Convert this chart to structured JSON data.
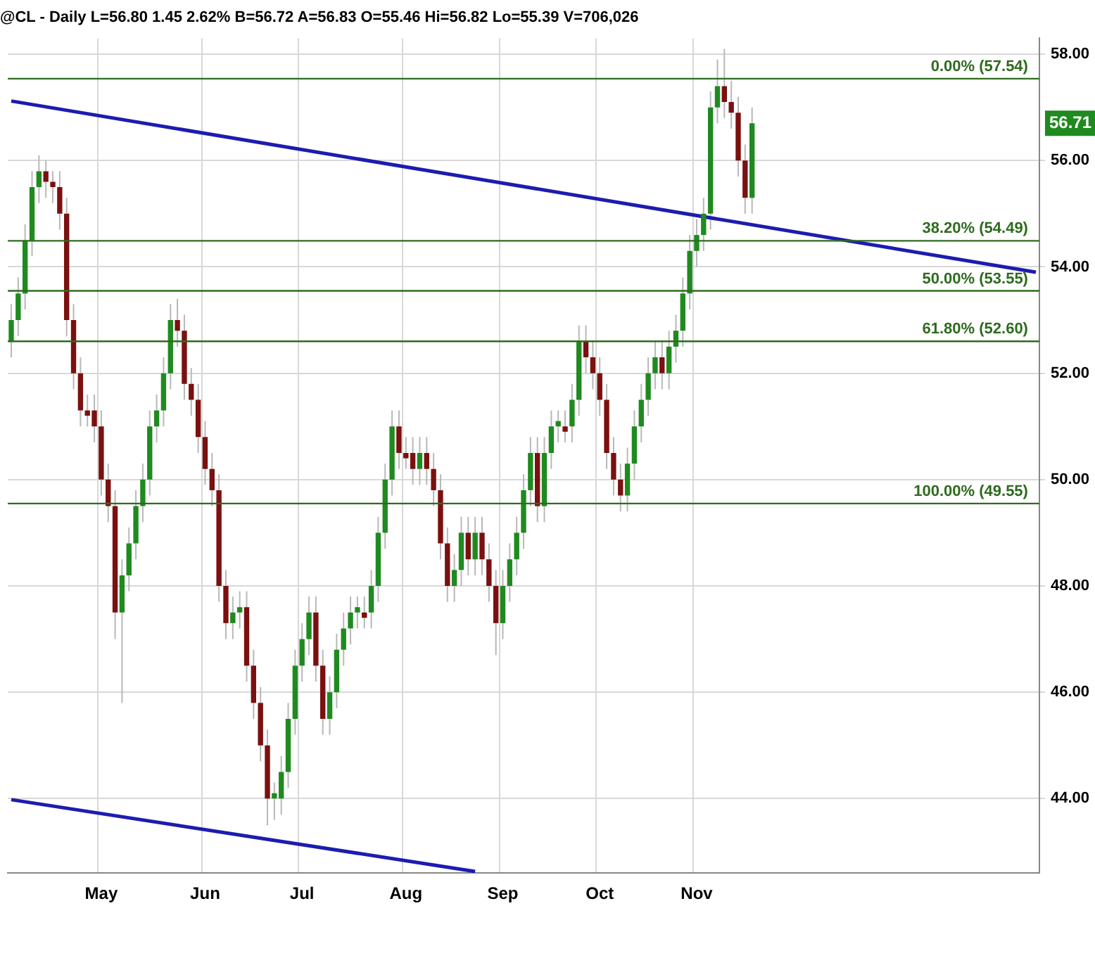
{
  "chart_data": {
    "type": "candlestick",
    "title": "@CL - Daily L=56.80 1.45 2.62% B=56.72 A=56.83 O=55.46 Hi=56.82 Lo=55.39 V=706,026",
    "categories": [
      null,
      null,
      null,
      null,
      null,
      null,
      null,
      null,
      null,
      null,
      null,
      null,
      null,
      "May",
      null,
      null,
      null,
      null,
      null,
      null,
      null,
      null,
      null,
      null,
      null,
      null,
      null,
      null,
      "Jun",
      null,
      null,
      null,
      null,
      null,
      null,
      null,
      null,
      null,
      null,
      null,
      null,
      null,
      "Jul",
      null,
      null,
      null,
      null,
      null,
      null,
      null,
      null,
      null,
      null,
      null,
      null,
      null,
      null,
      "Aug",
      null,
      null,
      null,
      null,
      null,
      null,
      null,
      null,
      null,
      null,
      null,
      null,
      null,
      "Sep",
      null,
      null,
      null,
      null,
      null,
      null,
      null,
      null,
      null,
      null,
      null,
      null,
      null,
      "Oct",
      null,
      null,
      null,
      null,
      null,
      null,
      null,
      null,
      null,
      null,
      null,
      null,
      null,
      "Nov",
      null,
      null,
      null,
      null,
      null,
      null,
      null,
      null,
      null,
      null,
      null,
      null,
      null,
      null,
      null,
      null,
      null,
      null,
      null,
      null,
      null,
      null,
      null,
      null,
      null,
      null,
      null,
      null,
      null,
      null,
      null,
      null,
      null,
      null,
      null,
      null,
      null,
      null,
      null,
      null,
      null,
      null,
      null,
      null,
      null,
      null,
      null,
      null,
      null
    ],
    "ohlc": [
      [
        52.6,
        53.3,
        52.3,
        53.0
      ],
      [
        53.0,
        53.8,
        52.7,
        53.5
      ],
      [
        53.5,
        54.8,
        53.2,
        54.5
      ],
      [
        54.5,
        55.8,
        54.2,
        55.5
      ],
      [
        55.5,
        56.1,
        55.2,
        55.8
      ],
      [
        55.8,
        56.0,
        55.3,
        55.6
      ],
      [
        55.6,
        55.8,
        55.2,
        55.5
      ],
      [
        55.5,
        55.8,
        54.7,
        55.0
      ],
      [
        55.0,
        55.3,
        52.7,
        53.0
      ],
      [
        53.0,
        53.3,
        51.7,
        52.0
      ],
      [
        52.0,
        52.3,
        51.0,
        51.3
      ],
      [
        51.3,
        51.6,
        51.0,
        51.2
      ],
      [
        51.3,
        51.6,
        50.7,
        51.0
      ],
      [
        51.0,
        51.3,
        49.7,
        50.0
      ],
      [
        50.0,
        50.3,
        49.2,
        49.5
      ],
      [
        49.5,
        49.8,
        47.0,
        47.5
      ],
      [
        47.5,
        48.5,
        45.8,
        48.2
      ],
      [
        48.2,
        49.1,
        47.9,
        48.8
      ],
      [
        48.8,
        49.8,
        48.5,
        49.5
      ],
      [
        49.5,
        50.3,
        49.2,
        50.0
      ],
      [
        50.0,
        51.3,
        49.7,
        51.0
      ],
      [
        51.0,
        51.6,
        50.7,
        51.3
      ],
      [
        51.3,
        52.3,
        51.0,
        52.0
      ],
      [
        52.0,
        53.3,
        51.7,
        53.0
      ],
      [
        53.0,
        53.4,
        52.5,
        52.8
      ],
      [
        52.8,
        53.1,
        51.5,
        51.8
      ],
      [
        51.8,
        52.1,
        51.2,
        51.5
      ],
      [
        51.5,
        51.8,
        50.5,
        50.8
      ],
      [
        50.8,
        51.1,
        49.9,
        50.2
      ],
      [
        50.2,
        50.5,
        49.5,
        49.8
      ],
      [
        49.8,
        50.1,
        47.7,
        48.0
      ],
      [
        48.0,
        48.3,
        47.0,
        47.3
      ],
      [
        47.3,
        47.8,
        47.0,
        47.5
      ],
      [
        47.5,
        47.9,
        47.2,
        47.6
      ],
      [
        47.6,
        47.9,
        46.2,
        46.5
      ],
      [
        46.5,
        46.8,
        45.5,
        45.8
      ],
      [
        45.8,
        46.1,
        44.7,
        45.0
      ],
      [
        45.0,
        45.3,
        43.5,
        44.0
      ],
      [
        44.0,
        44.3,
        43.6,
        44.1
      ],
      [
        44.0,
        44.8,
        43.7,
        44.5
      ],
      [
        44.5,
        45.8,
        44.2,
        45.5
      ],
      [
        45.5,
        46.8,
        45.2,
        46.5
      ],
      [
        46.5,
        47.3,
        46.2,
        47.0
      ],
      [
        47.0,
        47.8,
        46.7,
        47.5
      ],
      [
        47.5,
        47.8,
        46.2,
        46.5
      ],
      [
        46.5,
        46.8,
        45.2,
        45.5
      ],
      [
        45.5,
        46.3,
        45.2,
        46.0
      ],
      [
        46.0,
        47.1,
        45.7,
        46.8
      ],
      [
        46.8,
        47.5,
        46.5,
        47.2
      ],
      [
        47.2,
        47.8,
        46.9,
        47.5
      ],
      [
        47.5,
        47.8,
        47.2,
        47.6
      ],
      [
        47.5,
        47.8,
        47.2,
        47.4
      ],
      [
        47.5,
        48.3,
        47.2,
        48.0
      ],
      [
        48.0,
        49.3,
        47.7,
        49.0
      ],
      [
        49.0,
        50.3,
        48.7,
        50.0
      ],
      [
        50.0,
        51.3,
        49.7,
        51.0
      ],
      [
        51.0,
        51.3,
        50.2,
        50.5
      ],
      [
        50.5,
        50.8,
        50.2,
        50.4
      ],
      [
        50.5,
        50.8,
        49.9,
        50.2
      ],
      [
        50.2,
        50.8,
        49.9,
        50.5
      ],
      [
        50.5,
        50.8,
        49.9,
        50.2
      ],
      [
        50.2,
        50.5,
        49.5,
        49.8
      ],
      [
        49.8,
        50.1,
        48.5,
        48.8
      ],
      [
        48.8,
        49.1,
        47.7,
        48.0
      ],
      [
        48.0,
        48.6,
        47.7,
        48.3
      ],
      [
        48.3,
        49.3,
        48.0,
        49.0
      ],
      [
        49.0,
        49.3,
        48.2,
        48.5
      ],
      [
        48.5,
        49.3,
        48.2,
        49.0
      ],
      [
        49.0,
        49.3,
        48.2,
        48.5
      ],
      [
        48.5,
        48.8,
        47.7,
        48.0
      ],
      [
        48.0,
        48.3,
        46.7,
        47.3
      ],
      [
        47.3,
        48.3,
        47.0,
        48.0
      ],
      [
        48.0,
        48.8,
        47.7,
        48.5
      ],
      [
        48.5,
        49.3,
        48.2,
        49.0
      ],
      [
        49.0,
        50.1,
        48.7,
        49.8
      ],
      [
        49.8,
        50.8,
        49.5,
        50.5
      ],
      [
        50.5,
        50.8,
        49.2,
        49.5
      ],
      [
        49.5,
        50.8,
        49.2,
        50.5
      ],
      [
        50.5,
        51.3,
        50.2,
        51.0
      ],
      [
        51.0,
        51.3,
        50.7,
        51.1
      ],
      [
        51.0,
        51.3,
        50.7,
        50.9
      ],
      [
        51.0,
        51.8,
        50.7,
        51.5
      ],
      [
        51.5,
        52.9,
        51.2,
        52.6
      ],
      [
        52.6,
        52.9,
        52.0,
        52.3
      ],
      [
        52.3,
        52.6,
        51.7,
        52.0
      ],
      [
        52.0,
        52.3,
        51.2,
        51.5
      ],
      [
        51.5,
        51.8,
        50.2,
        50.5
      ],
      [
        50.5,
        50.8,
        49.7,
        50.0
      ],
      [
        50.0,
        50.3,
        49.4,
        49.7
      ],
      [
        49.7,
        50.6,
        49.4,
        50.3
      ],
      [
        50.3,
        51.3,
        50.0,
        51.0
      ],
      [
        51.0,
        51.8,
        50.7,
        51.5
      ],
      [
        51.5,
        52.3,
        51.2,
        52.0
      ],
      [
        52.0,
        52.6,
        51.7,
        52.3
      ],
      [
        52.3,
        52.6,
        51.7,
        52.0
      ],
      [
        52.0,
        52.8,
        51.7,
        52.5
      ],
      [
        52.5,
        53.1,
        52.2,
        52.8
      ],
      [
        52.8,
        53.8,
        52.5,
        53.5
      ],
      [
        53.5,
        54.6,
        53.2,
        54.3
      ],
      [
        54.3,
        54.9,
        54.0,
        54.6
      ],
      [
        54.6,
        55.3,
        54.3,
        55.0
      ],
      [
        55.0,
        57.3,
        54.7,
        57.0
      ],
      [
        57.0,
        57.9,
        56.7,
        57.4
      ],
      [
        57.4,
        58.1,
        56.8,
        57.1
      ],
      [
        57.1,
        57.5,
        56.6,
        56.9
      ],
      [
        56.9,
        57.2,
        55.7,
        56.0
      ],
      [
        56.0,
        56.3,
        55.0,
        55.3
      ],
      [
        55.3,
        57.0,
        55.0,
        56.7
      ],
      null,
      null,
      null,
      null,
      null,
      null,
      null,
      null,
      null,
      null,
      null,
      null,
      null,
      null,
      null,
      null,
      null,
      null,
      null,
      null,
      null,
      null,
      null,
      null,
      null,
      null,
      null,
      null,
      null,
      null,
      null,
      null,
      null,
      null,
      null,
      null,
      null,
      null,
      null,
      null,
      null
    ],
    "series": [
      {
        "type": "line",
        "color": "#1c1cb0",
        "values": [
          57.12,
          null,
          null,
          null,
          null,
          null,
          null,
          null,
          null,
          null,
          null,
          null,
          null,
          null,
          null,
          null,
          null,
          null,
          null,
          null,
          null,
          null,
          null,
          null,
          null,
          null,
          null,
          null,
          null,
          null,
          null,
          null,
          null,
          null,
          null,
          null,
          null,
          null,
          null,
          null,
          null,
          null,
          null,
          null,
          null,
          null,
          null,
          null,
          null,
          null,
          null,
          null,
          null,
          null,
          null,
          null,
          null,
          null,
          null,
          null,
          null,
          null,
          null,
          null,
          null,
          null,
          null,
          null,
          null,
          null,
          null,
          null,
          null,
          null,
          null,
          null,
          null,
          null,
          null,
          null,
          null,
          null,
          null,
          null,
          null,
          null,
          null,
          null,
          null,
          null,
          null,
          null,
          null,
          null,
          null,
          null,
          null,
          null,
          null,
          null,
          null,
          null,
          null,
          null,
          null,
          null,
          null,
          null,
          null,
          null,
          null,
          null,
          null,
          null,
          null,
          null,
          null,
          null,
          null,
          null,
          null,
          null,
          null,
          null,
          null,
          null,
          null,
          null,
          null,
          null,
          null,
          null,
          null,
          null,
          null,
          null,
          null,
          null,
          null,
          null,
          null,
          null,
          null,
          null,
          null,
          null,
          null,
          null,
          53.9
        ]
      },
      {
        "type": "line",
        "color": "#1c1cb0",
        "values": [
          43.98,
          null,
          null,
          null,
          null,
          null,
          null,
          null,
          null,
          null,
          null,
          null,
          null,
          null,
          null,
          null,
          null,
          null,
          null,
          null,
          null,
          null,
          null,
          null,
          null,
          null,
          null,
          null,
          null,
          null,
          null,
          null,
          null,
          null,
          null,
          null,
          null,
          null,
          null,
          null,
          null,
          null,
          null,
          null,
          null,
          null,
          null,
          null,
          null,
          null,
          null,
          null,
          null,
          null,
          null,
          null,
          null,
          null,
          null,
          null,
          null,
          null,
          null,
          null,
          null,
          null,
          null,
          42.63,
          null,
          null,
          null,
          null,
          null,
          null,
          null,
          null,
          null,
          null,
          null,
          null,
          null,
          null,
          null,
          null,
          null,
          null,
          null,
          null,
          null,
          null,
          null,
          null,
          null,
          null,
          null,
          null,
          null,
          null,
          null,
          null,
          null,
          null,
          null,
          null,
          null,
          null,
          null,
          null,
          null,
          null,
          null,
          null,
          null,
          null,
          null,
          null,
          null,
          null,
          null,
          null,
          null,
          null,
          null,
          null,
          null,
          null,
          null,
          null,
          null,
          null,
          null,
          null,
          null,
          null,
          null,
          null,
          null,
          null,
          null,
          null,
          null,
          null,
          null,
          null,
          null,
          null,
          null,
          null,
          null
        ]
      }
    ],
    "ylim": [
      42.6,
      58.3
    ],
    "yticks": [
      {
        "value": 44,
        "label": "44.00"
      },
      {
        "value": 46,
        "label": "46.00"
      },
      {
        "value": 48,
        "label": "48.00"
      },
      {
        "value": 50,
        "label": "50.00"
      },
      {
        "value": 52,
        "label": "52.00"
      },
      {
        "value": 54,
        "label": "54.00"
      },
      {
        "value": 56,
        "label": "56.00"
      },
      {
        "value": 58,
        "label": "58.00"
      }
    ],
    "ref_lines": [
      {
        "axis": "y",
        "value": 57.54,
        "label": "0.00% (57.54)",
        "color": "#2e6b1e"
      },
      {
        "axis": "y",
        "value": 54.49,
        "label": "38.20% (54.49)",
        "color": "#2e6b1e"
      },
      {
        "axis": "y",
        "value": 53.55,
        "label": "50.00% (53.55)",
        "color": "#2e6b1e"
      },
      {
        "axis": "y",
        "value": 52.6,
        "label": "61.80% (52.60)",
        "color": "#2e6b1e"
      },
      {
        "axis": "y",
        "value": 49.55,
        "label": "100.00% (49.55)",
        "color": "#2e6b1e"
      }
    ],
    "annotations": [
      "56.71"
    ],
    "grid": true,
    "legend": false
  }
}
